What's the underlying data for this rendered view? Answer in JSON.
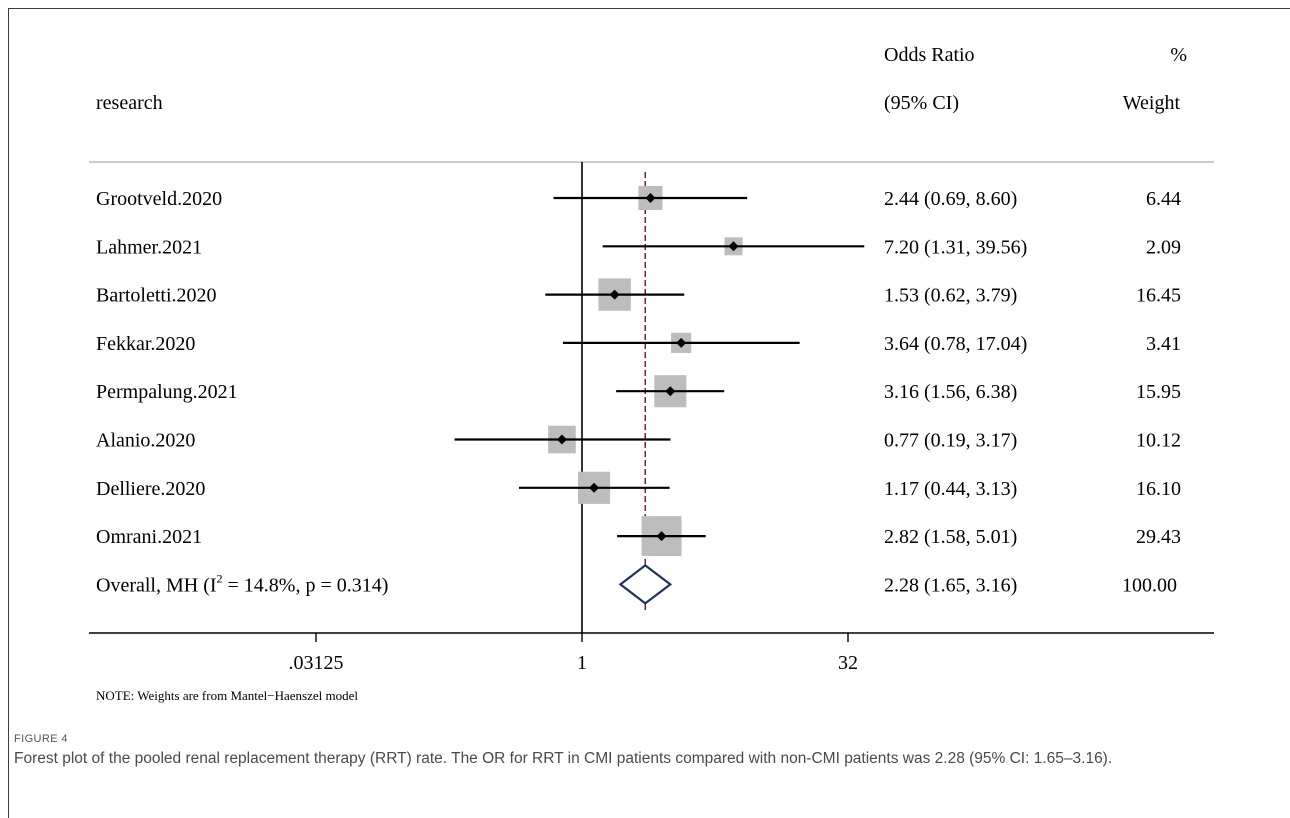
{
  "chart_data": {
    "type": "forest",
    "columns": {
      "study": "research",
      "or_top": "Odds Ratio",
      "or_bottom": "(95% CI)",
      "weight_top": "%",
      "weight_bottom": "Weight"
    },
    "studies": [
      {
        "label": "Grootveld.2020",
        "or": 2.44,
        "lo": 0.69,
        "hi": 8.6,
        "ci_text": "2.44 (0.69, 8.60)",
        "weight": 6.44,
        "weight_text": "6.44"
      },
      {
        "label": "Lahmer.2021",
        "or": 7.2,
        "lo": 1.31,
        "hi": 39.56,
        "ci_text": "7.20 (1.31, 39.56)",
        "weight": 2.09,
        "weight_text": "2.09"
      },
      {
        "label": "Bartoletti.2020",
        "or": 1.53,
        "lo": 0.62,
        "hi": 3.79,
        "ci_text": "1.53 (0.62, 3.79)",
        "weight": 16.45,
        "weight_text": "16.45"
      },
      {
        "label": "Fekkar.2020",
        "or": 3.64,
        "lo": 0.78,
        "hi": 17.04,
        "ci_text": "3.64 (0.78, 17.04)",
        "weight": 3.41,
        "weight_text": "3.41"
      },
      {
        "label": "Permpalung.2021",
        "or": 3.16,
        "lo": 1.56,
        "hi": 6.38,
        "ci_text": "3.16 (1.56, 6.38)",
        "weight": 15.95,
        "weight_text": "15.95"
      },
      {
        "label": "Alanio.2020",
        "or": 0.77,
        "lo": 0.19,
        "hi": 3.17,
        "ci_text": "0.77 (0.19, 3.17)",
        "weight": 10.12,
        "weight_text": "10.12"
      },
      {
        "label": "Delliere.2020",
        "or": 1.17,
        "lo": 0.44,
        "hi": 3.13,
        "ci_text": "1.17 (0.44, 3.13)",
        "weight": 16.1,
        "weight_text": "16.10"
      },
      {
        "label": "Omrani.2021",
        "or": 2.82,
        "lo": 1.58,
        "hi": 5.01,
        "ci_text": "2.82 (1.58, 5.01)",
        "weight": 29.43,
        "weight_text": "29.43"
      }
    ],
    "overall": {
      "label_prefix": "Overall, MH (I",
      "label_sup": "2",
      "label_suffix": " = 14.8%, p = 0.314)",
      "or": 2.28,
      "lo": 1.65,
      "hi": 3.16,
      "ci_text": "2.28 (1.65, 3.16)",
      "weight_text": "100.00"
    },
    "x_scale": "log2",
    "x_ticks": [
      {
        "value": 0.03125,
        "label": ".03125"
      },
      {
        "value": 1,
        "label": "1"
      },
      {
        "value": 32,
        "label": "32"
      }
    ],
    "xlim": [
      0.03125,
      32
    ],
    "null_line": 1,
    "note": "NOTE: Weights are from Mantel−Haenszel model",
    "colors": {
      "ci": "#000000",
      "box": "#bdbdbd",
      "diamond": "#22325e",
      "pooled_line": "#8b1a1a",
      "header_rule": "#bbbbbb"
    }
  },
  "figure": {
    "label": "FIGURE 4",
    "caption": "Forest plot of the pooled renal replacement therapy (RRT) rate. The OR for RRT in CMI patients compared with non-CMI patients was 2.28 (95% CI: 1.65–3.16)."
  }
}
